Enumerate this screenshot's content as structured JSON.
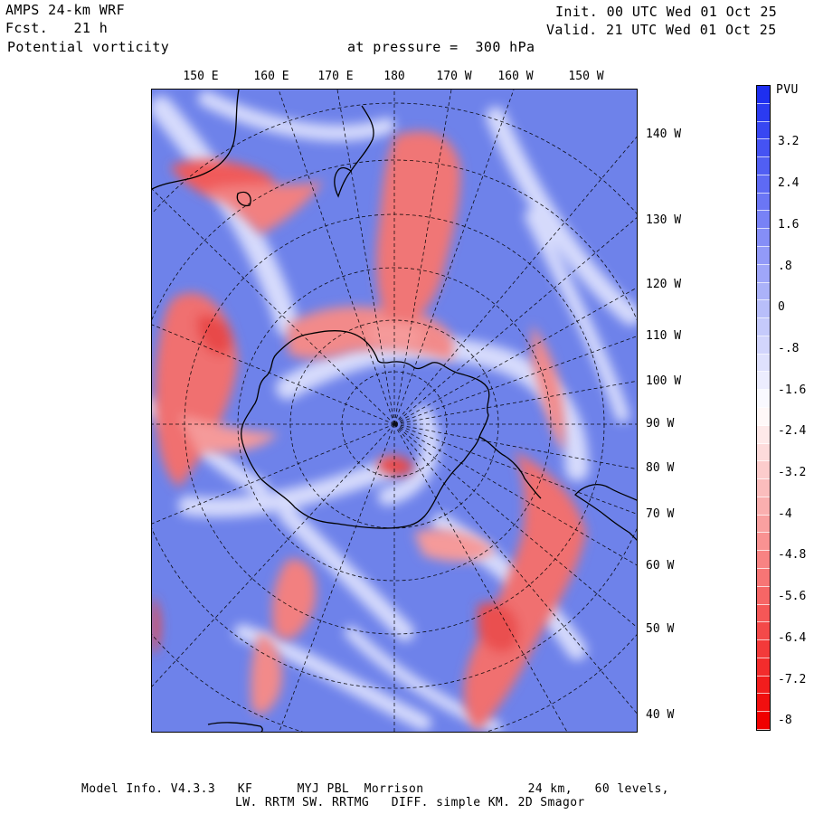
{
  "header": {
    "title": "AMPS 24-km WRF",
    "forecast": "Fcst.   21 h",
    "field": "Potential vorticity",
    "pressure": "at pressure =  300 hPa",
    "init": "Init. 00 UTC Wed 01 Oct 25",
    "valid": "Valid. 21 UTC Wed 01 Oct 25"
  },
  "map": {
    "top_labels": [
      "150 E",
      "160 E",
      "170 E",
      "180",
      "170 W",
      "160 W",
      "150 W"
    ],
    "right_labels": [
      "140 W",
      "130 W",
      "120 W",
      "110 W",
      "100 W",
      "90 W",
      "80 W",
      "70 W",
      "60 W",
      "50 W",
      "40 W"
    ],
    "colors": {
      "ocean_blue": "#6e82ea",
      "high_red": "#f04848",
      "mid_white": "#f4f4ff",
      "coast": "#000000"
    }
  },
  "colorbar": {
    "unit": "PVU",
    "labels": [
      "3.2",
      "2.4",
      "1.6",
      ".8",
      "0",
      "-.8",
      "-1.6",
      "-2.4",
      "-3.2",
      "-4",
      "-4.8",
      "-5.6",
      "-6.4",
      "-7.2",
      "-8"
    ],
    "top_color": "#1e2ff0",
    "bottom_color": "#f00000"
  },
  "footer": {
    "line1": "Model Info. V4.3.3   KF      MYJ PBL  Morrison              24 km,   60 levels,",
    "line2": "LW. RRTM SW. RRTMG   DIFF. simple KM. 2D Smagor"
  }
}
